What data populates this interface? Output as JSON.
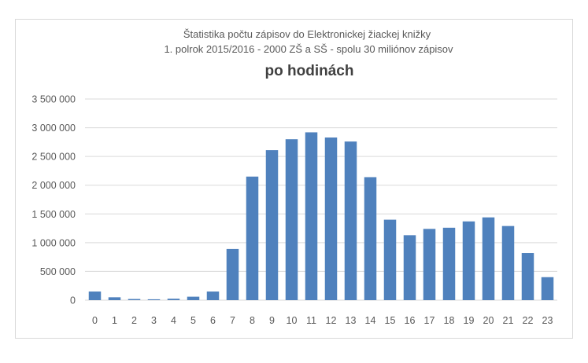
{
  "chart_data": {
    "type": "bar",
    "title_lines": [
      "Štatistika počtu zápisov do Elektronickej žiackej knižky",
      "1. polrok 2015/2016 -  2000 ZŠ a SŠ - spolu 30 miliónov zápisov"
    ],
    "title": "po hodinách",
    "xlabel": "",
    "ylabel": "",
    "categories": [
      "0",
      "1",
      "2",
      "3",
      "4",
      "5",
      "6",
      "7",
      "8",
      "9",
      "10",
      "11",
      "12",
      "13",
      "14",
      "15",
      "16",
      "17",
      "18",
      "19",
      "20",
      "21",
      "22",
      "23"
    ],
    "values": [
      150000,
      50000,
      20000,
      15000,
      25000,
      60000,
      150000,
      890000,
      2150000,
      2610000,
      2800000,
      2920000,
      2830000,
      2760000,
      2140000,
      1400000,
      1130000,
      1240000,
      1260000,
      1370000,
      1440000,
      1290000,
      820000,
      400000
    ],
    "ylim": [
      0,
      3500000
    ],
    "yticks": [
      0,
      500000,
      1000000,
      1500000,
      2000000,
      2500000,
      3000000,
      3500000
    ],
    "ytick_labels": [
      "0",
      "500 000",
      "1 000 000",
      "1 500 000",
      "2 000 000",
      "2 500 000",
      "3 000 000",
      "3 500 000"
    ],
    "grid": true,
    "legend": "none",
    "colors": {
      "bar": "#4f81bd",
      "grid": "#d9d9d9",
      "text": "#595959",
      "title": "#404040"
    }
  }
}
